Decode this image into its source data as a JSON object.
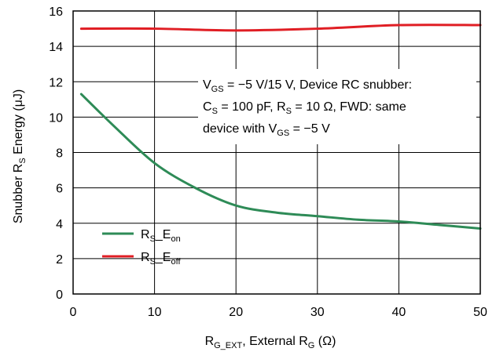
{
  "chart_data": {
    "type": "line",
    "xlabel": {
      "main": "R",
      "sub": "G_EXT",
      "rest": ", External R",
      "sub2": "G",
      "tail": " (Ω)"
    },
    "ylabel": {
      "main": "Snubber R",
      "sub": "S",
      "rest": " Energy (μJ)"
    },
    "xlim": [
      0,
      50
    ],
    "ylim": [
      0,
      16
    ],
    "x_ticks": [
      "0",
      "10",
      "20",
      "30",
      "40",
      "50"
    ],
    "y_ticks": [
      "0",
      "2",
      "4",
      "6",
      "8",
      "10",
      "12",
      "14",
      "16"
    ],
    "grid": true,
    "series": [
      {
        "name": "R_S_E_on",
        "legend": {
          "r": "R",
          "rsub": "S",
          "e": "_E",
          "esub": "on"
        },
        "color": "#2e8b57",
        "x": [
          1,
          5,
          10,
          15,
          20,
          25,
          30,
          35,
          40,
          45,
          50
        ],
        "y": [
          11.3,
          9.5,
          7.4,
          6.0,
          5.0,
          4.6,
          4.4,
          4.2,
          4.1,
          3.9,
          3.7
        ]
      },
      {
        "name": "R_S_E_off",
        "legend": {
          "r": "R",
          "rsub": "S",
          "e": "_E",
          "esub": "off"
        },
        "color": "#e01e24",
        "x": [
          1,
          10,
          20,
          30,
          40,
          50
        ],
        "y": [
          15.0,
          15.0,
          14.9,
          15.0,
          15.2,
          15.2
        ]
      }
    ],
    "legend_position": "bottom-left",
    "annotation": {
      "line1": [
        {
          "t": "V"
        },
        {
          "t": "GS",
          "sub": true
        },
        {
          "t": " = −5 V/15 V, Device RC snubber:"
        }
      ],
      "line2": [
        {
          "t": "C"
        },
        {
          "t": "S",
          "sub": true
        },
        {
          "t": " = 100 pF, R"
        },
        {
          "t": "S",
          "sub": true
        },
        {
          "t": " = 10 Ω, FWD: same"
        }
      ],
      "line3": [
        {
          "t": "device with V"
        },
        {
          "t": "GS",
          "sub": true
        },
        {
          "t": " = −5 V"
        }
      ]
    }
  }
}
